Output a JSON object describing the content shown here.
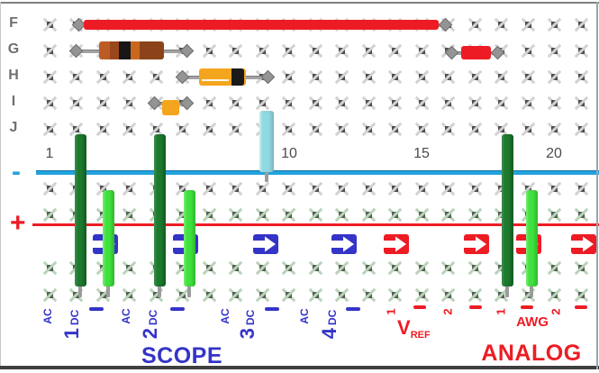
{
  "board": {
    "row_labels": [
      "F",
      "G",
      "H",
      "I",
      "J"
    ],
    "column_numbers": [
      "1",
      "10",
      "15",
      "20"
    ],
    "negative_symbol": "-",
    "positive_symbol": "+"
  },
  "scope": {
    "title": "SCOPE",
    "channels": [
      {
        "number": "1",
        "ac": "AC",
        "dc": "DC",
        "gnd": "–"
      },
      {
        "number": "2",
        "ac": "AC",
        "dc": "DC",
        "gnd": "–"
      },
      {
        "number": "3",
        "ac": "AC",
        "dc": "DC",
        "gnd": "–"
      },
      {
        "number": "4",
        "ac": "AC",
        "dc": "DC",
        "gnd": "–"
      }
    ]
  },
  "analog": {
    "title": "ANALOG",
    "vref_label": "V",
    "vref_sub": "REF",
    "vref_pins": [
      "1",
      "–",
      "2",
      "–"
    ],
    "awg_label": "AWG",
    "awg_pins": [
      "1",
      "–",
      "2",
      "–"
    ]
  },
  "colors": {
    "scope_blue": "#3434c8",
    "analog_red": "#ed1c24",
    "negative_rail": "#21a3dd",
    "positive_rail": "#ed1c24",
    "dark_green_wire": "#1c7a2e",
    "light_green_wire": "#3fe23c",
    "cyan_capacitor": "#8fd9e1",
    "component_orange": "#f4a51e",
    "red_wire": "#ed1c24"
  },
  "components": [
    {
      "name": "long-red-jumper-wire",
      "type": "jumper-wire",
      "row": "F",
      "from_col": 2,
      "to_col": 16
    },
    {
      "name": "resistor",
      "type": "resistor",
      "row": "G",
      "from_col": 2,
      "to_col": 6
    },
    {
      "name": "diode",
      "type": "diode",
      "row": "H",
      "from_col": 6,
      "to_col": 9
    },
    {
      "name": "small-orange-jumper",
      "type": "jumper",
      "row": "I",
      "from_col": 5,
      "to_col": 6
    },
    {
      "name": "short-red-jumper",
      "type": "jumper",
      "row": "G",
      "from_col": 16,
      "to_col": 18
    },
    {
      "name": "cyan-capacitor",
      "type": "capacitor",
      "col": 9
    },
    {
      "name": "scope1-dc-wire",
      "type": "vertical-wire",
      "col": 2,
      "shade": "dark"
    },
    {
      "name": "scope1-gnd-wire",
      "type": "vertical-wire",
      "col": 3,
      "shade": "light"
    },
    {
      "name": "scope2-dc-wire",
      "type": "vertical-wire",
      "col": 5,
      "shade": "dark"
    },
    {
      "name": "scope2-gnd-wire",
      "type": "vertical-wire",
      "col": 6,
      "shade": "light"
    },
    {
      "name": "awg1-wire",
      "type": "vertical-wire",
      "col": 18,
      "shade": "dark"
    },
    {
      "name": "awg1-gnd-wire",
      "type": "vertical-wire",
      "col": 19,
      "shade": "light"
    }
  ]
}
